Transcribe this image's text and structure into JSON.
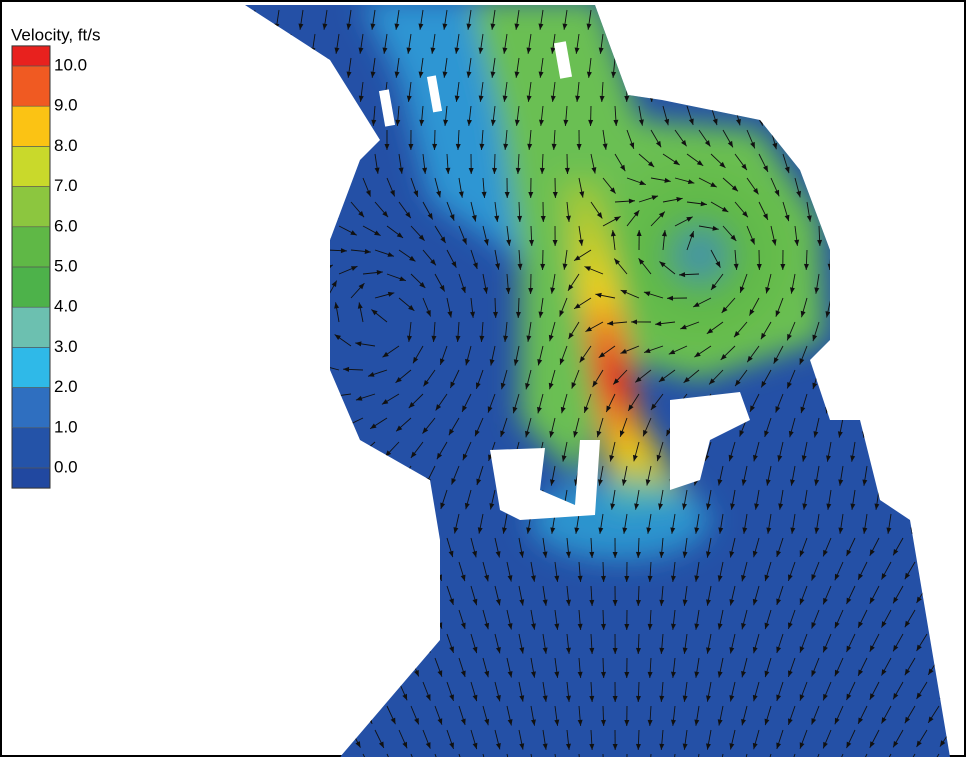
{
  "legend": {
    "title": "Velocity, ft/s",
    "ticks": [
      {
        "value": 10,
        "label": "10.0"
      },
      {
        "value": 9,
        "label": "9.0"
      },
      {
        "value": 8,
        "label": "8.0"
      },
      {
        "value": 7,
        "label": "7.0"
      },
      {
        "value": 6,
        "label": "6.0"
      },
      {
        "value": 5,
        "label": "5.0"
      },
      {
        "value": 4,
        "label": "4.0"
      },
      {
        "value": 3,
        "label": "3.0"
      },
      {
        "value": 2,
        "label": "2.0"
      },
      {
        "value": 1,
        "label": "1.0"
      },
      {
        "value": 0,
        "label": "0.0"
      }
    ],
    "colors": [
      "#e8211e",
      "#f05a22",
      "#fbc314",
      "#c9d92b",
      "#8cc63f",
      "#5fb846",
      "#4db24a",
      "#6cc0b0",
      "#2fb9e8",
      "#2f6fc0",
      "#2453a8",
      "#2148a0"
    ]
  }
}
